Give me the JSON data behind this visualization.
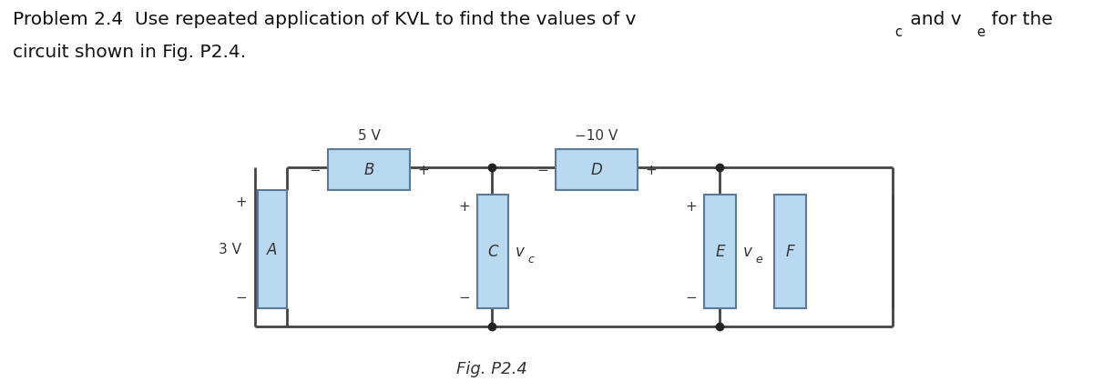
{
  "bg_color": "#ffffff",
  "box_fill": "#b8d9f0",
  "box_edge": "#5a7a9a",
  "wire_color": "#444444",
  "text_color": "#333333",
  "node_color": "#222222",
  "title_fontsize": 14.5,
  "circuit_title": "Problem 2.4  Use repeated application of KVL to find the values of v",
  "title_vc_sub": "c",
  "title_mid": " and v",
  "title_ve_sub": "e",
  "title_end": " for the",
  "title_line2": "circuit shown in Fig. P2.4.",
  "fig_caption": "Fig. P2.4",
  "label_3V": "3 V",
  "label_5V": "5 V",
  "label_10V": "−10 V",
  "label_A": "A",
  "label_B": "B",
  "label_C": "C",
  "label_D": "D",
  "label_E": "E",
  "label_F": "F",
  "label_vc": "v",
  "label_vc_sub": "c",
  "label_ve": "v",
  "label_ve_sub": "e"
}
